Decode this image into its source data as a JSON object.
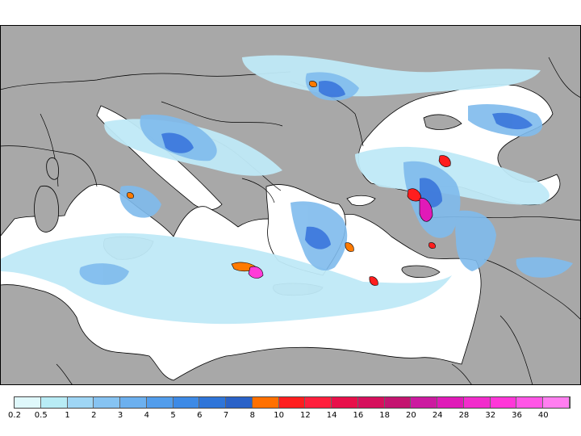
{
  "colors": {
    "land": "#a8a8a8",
    "sea": "#ffffff",
    "border": "#000000",
    "precip_light": "#bfe9f7",
    "precip_mid": "#7fbbed",
    "precip_strong": "#3a76db",
    "precip_orange": "#ff7a00",
    "precip_red": "#ff1e1e",
    "precip_magenta": "#ff3cd8"
  },
  "legend": {
    "labels": [
      "0.2",
      "0.5",
      "1",
      "2",
      "3",
      "4",
      "5",
      "6",
      "7",
      "8",
      "10",
      "12",
      "14",
      "16",
      "18",
      "20",
      "24",
      "28",
      "32",
      "36",
      "40"
    ],
    "colors": [
      "#dff8fb",
      "#b8ecf5",
      "#9fd6f5",
      "#86c3f2",
      "#6cb0ef",
      "#529dec",
      "#3d8ae6",
      "#2f75d9",
      "#2a62c8",
      "#ff7000",
      "#ff1e1e",
      "#ff1f3c",
      "#e8104a",
      "#d6105c",
      "#c41470",
      "#cc1aa0",
      "#e01ab8",
      "#f22ccc",
      "#ff36d8",
      "#ff55e6",
      "#ff7ef0"
    ]
  }
}
